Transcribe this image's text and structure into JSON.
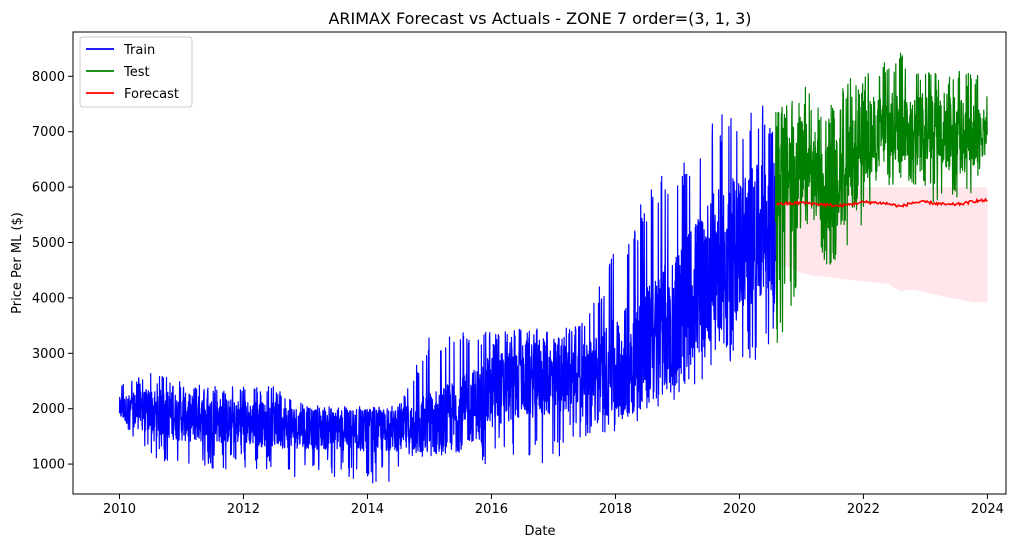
{
  "chart_data": {
    "type": "line",
    "title": "ARIMAX Forecast vs Actuals - ZONE 7 order=(3, 1, 3)",
    "xlabel": "Date",
    "ylabel": "Price Per ML ($)",
    "xlim": [
      2009.25,
      2024.3
    ],
    "ylim": [
      460,
      8800
    ],
    "x_ticks": [
      "2010",
      "2012",
      "2014",
      "2016",
      "2018",
      "2020",
      "2022",
      "2024"
    ],
    "y_ticks": [
      "1000",
      "2000",
      "3000",
      "4000",
      "5000",
      "6000",
      "7000",
      "8000"
    ],
    "grid": false,
    "legend_position": "top-left",
    "colors": {
      "train": "#0000ff",
      "test": "#008000",
      "forecast": "#ff0000",
      "confidence_band": "#ffc0cb"
    },
    "series": [
      {
        "name": "Train",
        "color": "#0000ff",
        "x": [
          2010.0,
          2010.5,
          2011.0,
          2011.5,
          2012.0,
          2012.5,
          2013.0,
          2013.5,
          2014.0,
          2014.5,
          2015.0,
          2015.5,
          2016.0,
          2016.5,
          2017.0,
          2017.5,
          2018.0,
          2018.5,
          2019.0,
          2019.5,
          2020.0,
          2020.58
        ],
        "y": [
          2000,
          1950,
          1850,
          1800,
          1750,
          1700,
          1650,
          1600,
          1600,
          1600,
          1700,
          1900,
          2300,
          2500,
          2550,
          2600,
          2700,
          3100,
          3700,
          4500,
          5000,
          5300
        ],
        "low": [
          1700,
          1100,
          900,
          900,
          900,
          900,
          700,
          750,
          650,
          700,
          1150,
          1200,
          950,
          1000,
          1000,
          1500,
          1500,
          1900,
          2200,
          2600,
          2800,
          3000
        ],
        "high": [
          2450,
          2650,
          2500,
          2400,
          2400,
          2400,
          2050,
          2050,
          2050,
          2050,
          3350,
          3550,
          3400,
          3450,
          3450,
          3550,
          4950,
          5900,
          6600,
          7350,
          7400,
          7500
        ]
      },
      {
        "name": "Test",
        "color": "#008000",
        "x": [
          2020.58,
          2020.8,
          2021.0,
          2021.2,
          2021.5,
          2021.8,
          2022.0,
          2022.3,
          2022.6,
          2022.9,
          2023.2,
          2023.5,
          2023.8,
          2024.0
        ],
        "y": [
          6200,
          6300,
          6200,
          6200,
          6000,
          6300,
          6800,
          7000,
          7100,
          7100,
          7100,
          6900,
          6900,
          7000
        ],
        "low": [
          3000,
          3500,
          4000,
          4500,
          4500,
          5000,
          5000,
          6000,
          6000,
          6000,
          5500,
          5500,
          6000,
          6500
        ],
        "high": [
          7500,
          7500,
          8000,
          7500,
          7500,
          8000,
          8000,
          8300,
          8450,
          8100,
          8100,
          8100,
          8100,
          7800
        ]
      },
      {
        "name": "Forecast",
        "color": "#ff0000",
        "x": [
          2020.6,
          2020.8,
          2021.0,
          2021.2,
          2021.4,
          2021.6,
          2021.8,
          2022.0,
          2022.2,
          2022.4,
          2022.6,
          2022.8,
          2023.0,
          2023.2,
          2023.4,
          2023.6,
          2023.8,
          2024.0
        ],
        "y": [
          5700,
          5700,
          5720,
          5700,
          5680,
          5660,
          5690,
          5730,
          5720,
          5700,
          5650,
          5720,
          5730,
          5700,
          5680,
          5700,
          5750,
          5760
        ],
        "lower": [
          4600,
          4550,
          4450,
          4400,
          4380,
          4350,
          4320,
          4300,
          4280,
          4250,
          4120,
          4150,
          4100,
          4050,
          4000,
          3960,
          3920,
          3920
        ],
        "upper": [
          5950,
          5950,
          5980,
          5980,
          5990,
          5990,
          6000,
          6000,
          6000,
          6000,
          6000,
          6000,
          6000,
          6000,
          6000,
          6000,
          6000,
          6000
        ]
      }
    ]
  }
}
